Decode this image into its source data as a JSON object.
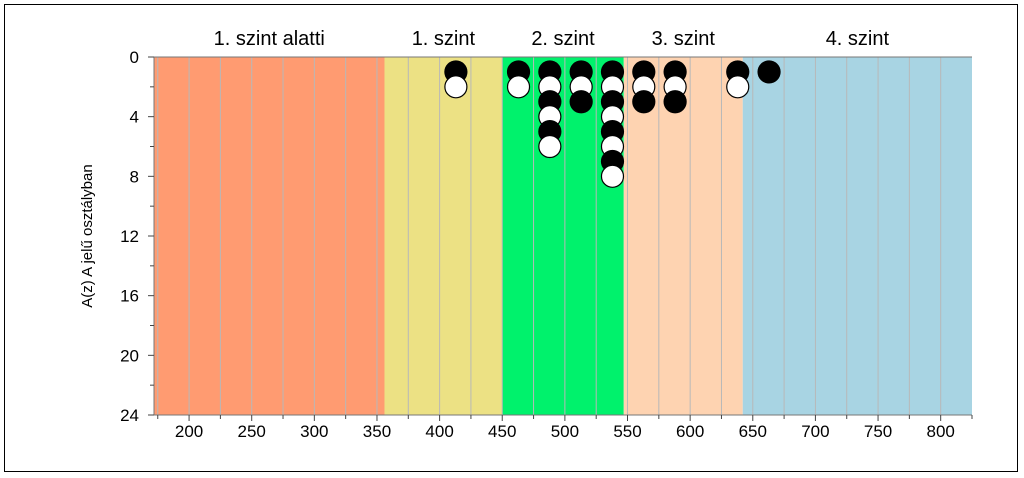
{
  "chart_data": {
    "type": "scatter",
    "title": "",
    "xlabel": "",
    "ylabel": "A(z) A jelű osztályban",
    "xlim": [
      172,
      825
    ],
    "ylim": [
      24,
      0
    ],
    "y_inverted": true,
    "grid": "vertical",
    "x_ticks": [
      200,
      250,
      300,
      350,
      400,
      450,
      500,
      550,
      600,
      650,
      700,
      750,
      800
    ],
    "y_ticks": [
      0,
      4,
      8,
      12,
      16,
      20,
      24
    ],
    "bands": [
      {
        "label": "1. szint alatti",
        "from": 172,
        "to": 356,
        "color": "#ff9b71"
      },
      {
        "label": "1. szint",
        "from": 356,
        "to": 450,
        "color": "#ece184"
      },
      {
        "label": "2. szint",
        "from": 450,
        "to": 547,
        "color": "#00f26c"
      },
      {
        "label": "3. szint",
        "from": 547,
        "to": 642,
        "color": "#fed3b1"
      },
      {
        "label": "4. szint",
        "from": 642,
        "to": 825,
        "color": "#a8d4e3"
      }
    ],
    "points": [
      {
        "x": 413,
        "y": 1,
        "fill": "black"
      },
      {
        "x": 413,
        "y": 2,
        "fill": "white"
      },
      {
        "x": 463,
        "y": 1,
        "fill": "black"
      },
      {
        "x": 463,
        "y": 2,
        "fill": "white"
      },
      {
        "x": 488,
        "y": 1,
        "fill": "black"
      },
      {
        "x": 488,
        "y": 2,
        "fill": "white"
      },
      {
        "x": 488,
        "y": 3,
        "fill": "black"
      },
      {
        "x": 488,
        "y": 4,
        "fill": "white"
      },
      {
        "x": 488,
        "y": 5,
        "fill": "black"
      },
      {
        "x": 488,
        "y": 6,
        "fill": "white"
      },
      {
        "x": 513,
        "y": 1,
        "fill": "black"
      },
      {
        "x": 513,
        "y": 2,
        "fill": "white"
      },
      {
        "x": 513,
        "y": 3,
        "fill": "black"
      },
      {
        "x": 538,
        "y": 1,
        "fill": "black"
      },
      {
        "x": 538,
        "y": 2,
        "fill": "white"
      },
      {
        "x": 538,
        "y": 3,
        "fill": "black"
      },
      {
        "x": 538,
        "y": 4,
        "fill": "white"
      },
      {
        "x": 538,
        "y": 5,
        "fill": "black"
      },
      {
        "x": 538,
        "y": 6,
        "fill": "white"
      },
      {
        "x": 538,
        "y": 7,
        "fill": "black"
      },
      {
        "x": 538,
        "y": 8,
        "fill": "white"
      },
      {
        "x": 563,
        "y": 1,
        "fill": "black"
      },
      {
        "x": 563,
        "y": 2,
        "fill": "white"
      },
      {
        "x": 563,
        "y": 3,
        "fill": "black"
      },
      {
        "x": 588,
        "y": 1,
        "fill": "black"
      },
      {
        "x": 588,
        "y": 2,
        "fill": "white"
      },
      {
        "x": 588,
        "y": 3,
        "fill": "black"
      },
      {
        "x": 638,
        "y": 1,
        "fill": "black"
      },
      {
        "x": 638,
        "y": 2,
        "fill": "white"
      },
      {
        "x": 663,
        "y": 1,
        "fill": "black"
      }
    ]
  }
}
